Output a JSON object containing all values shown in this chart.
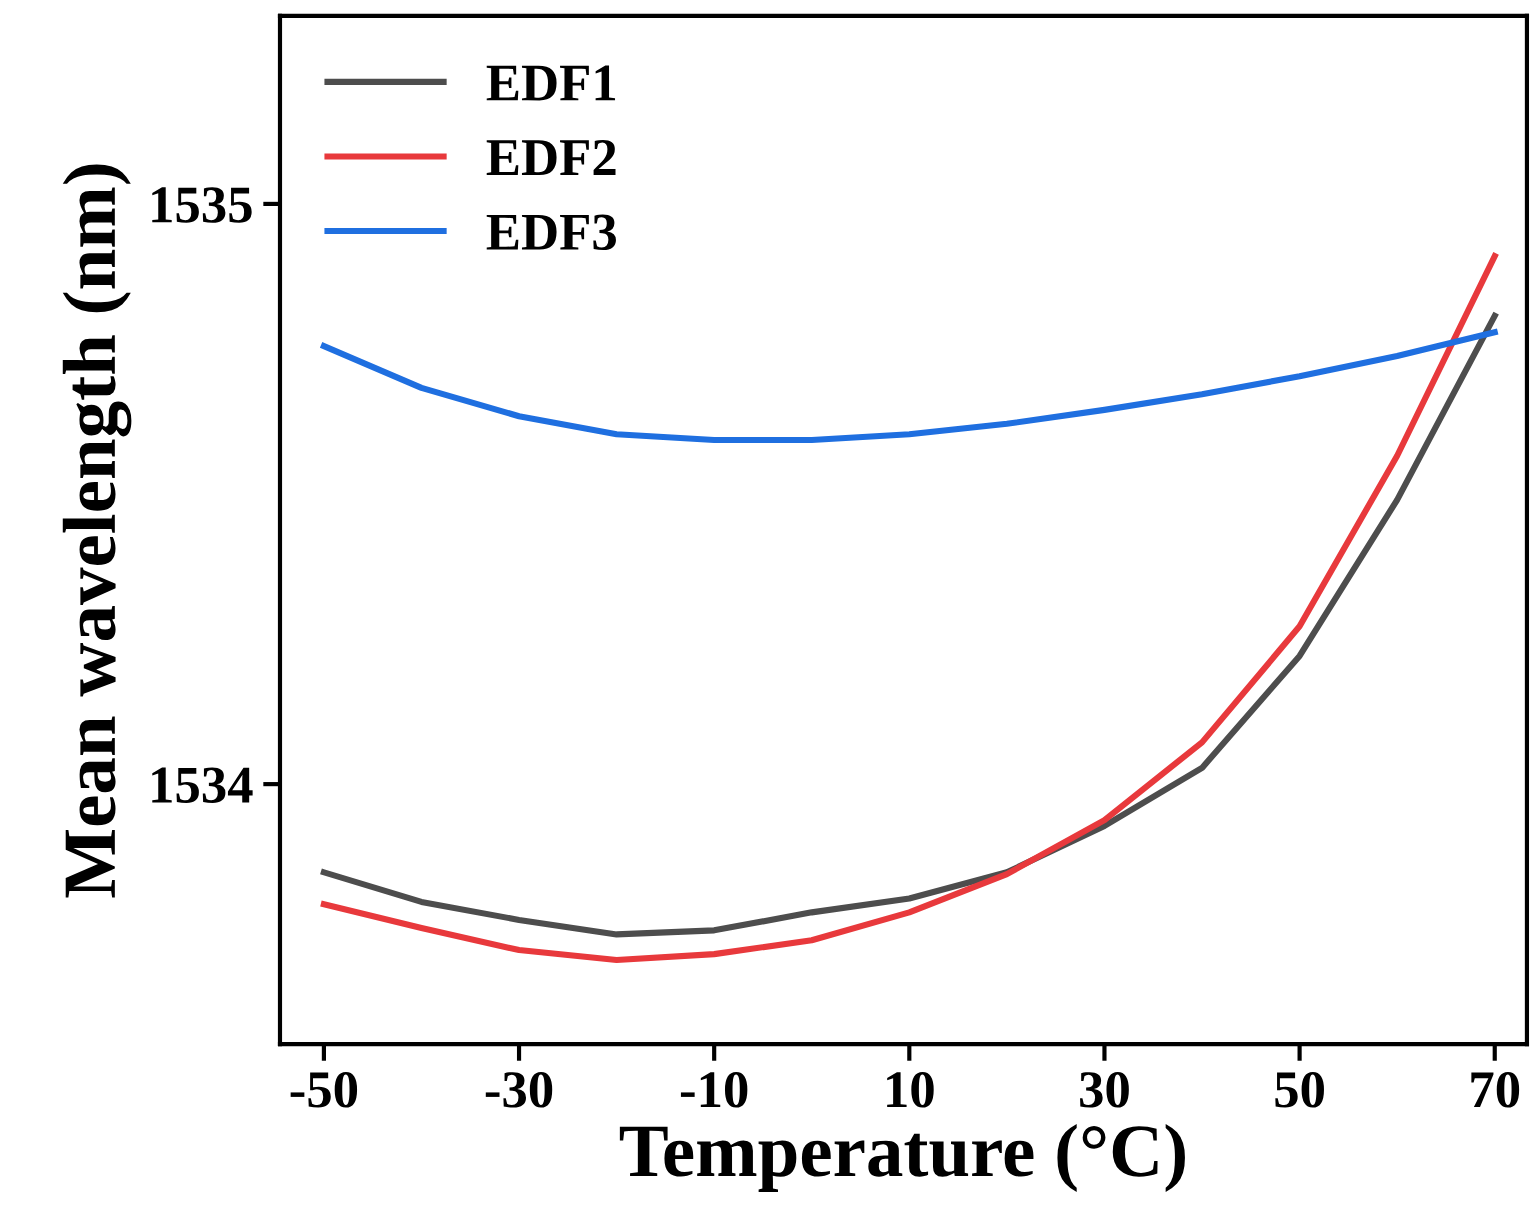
{
  "chart_data": {
    "type": "line",
    "xlabel": "Temperature (°C)",
    "ylabel": "Mean wavelength (nm)",
    "x": [
      -50,
      -40,
      -30,
      -20,
      -10,
      0,
      10,
      20,
      30,
      40,
      50,
      60,
      70
    ],
    "series": [
      {
        "name": "EDF1",
        "color": "#4d4d4d",
        "values": [
          1533.848,
          1533.797,
          1533.766,
          1533.741,
          1533.748,
          1533.779,
          1533.803,
          1533.848,
          1533.928,
          1534.028,
          1534.221,
          1534.49,
          1534.807
        ]
      },
      {
        "name": "EDF2",
        "color": "#e8393c",
        "values": [
          1533.793,
          1533.752,
          1533.714,
          1533.697,
          1533.707,
          1533.731,
          1533.779,
          1533.845,
          1533.938,
          1534.072,
          1534.272,
          1534.566,
          1534.91
        ]
      },
      {
        "name": "EDF3",
        "color": "#1f6fe0",
        "values": [
          1534.755,
          1534.683,
          1534.634,
          1534.603,
          1534.593,
          1534.593,
          1534.603,
          1534.621,
          1534.645,
          1534.672,
          1534.703,
          1534.738,
          1534.779
        ]
      }
    ],
    "xlim": [
      -54.5,
      73.3
    ],
    "ylim": [
      1533.552,
      1535.324
    ],
    "xticks": [
      -50,
      -30,
      -10,
      10,
      30,
      50,
      70
    ],
    "yticks": [
      1534,
      1535
    ],
    "grid": false,
    "legend": "top left",
    "marker": "none",
    "line_style": "solid"
  }
}
